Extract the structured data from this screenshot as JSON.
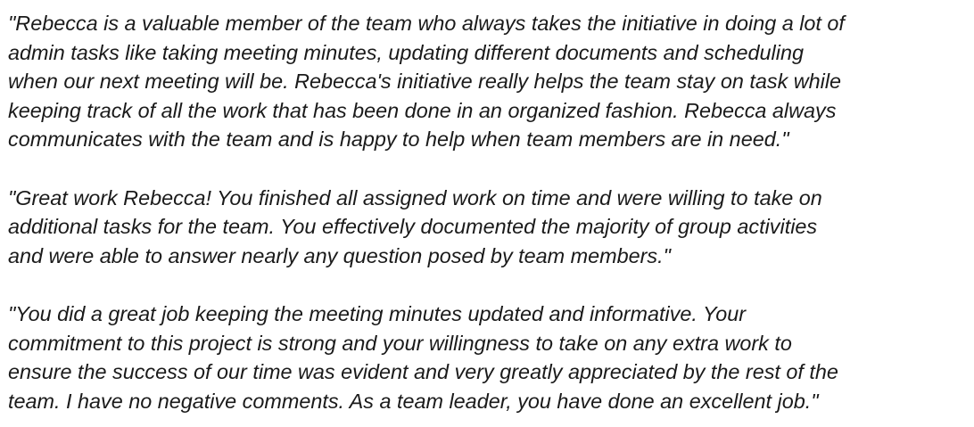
{
  "quotes": [
    {
      "lines": [
        "\"Rebecca is a valuable member of the team who always takes the initiative in doing a lot of",
        "admin tasks like taking meeting minutes, updating different documents and scheduling",
        "when our next meeting will be. Rebecca's initiative really helps the team stay on task while",
        "keeping track of all the work that has been done in an organized fashion. Rebecca always",
        "communicates with the team and is happy to help when team members are in need.\""
      ]
    },
    {
      "lines": [
        "\"Great work Rebecca! You finished all assigned work on time and were willing to take on",
        "additional tasks for the team. You effectively documented the majority of group activities",
        "and were able to answer nearly any question posed by team members.\""
      ]
    },
    {
      "lines": [
        "\"You did a great job keeping the meeting minutes updated and informative. Your",
        "commitment to this project is strong and your willingness to take on any extra work to",
        "ensure the success of our time was evident and very greatly appreciated by the rest of the",
        "team. I have no negative comments. As a team leader, you have done an excellent job.\""
      ]
    }
  ]
}
